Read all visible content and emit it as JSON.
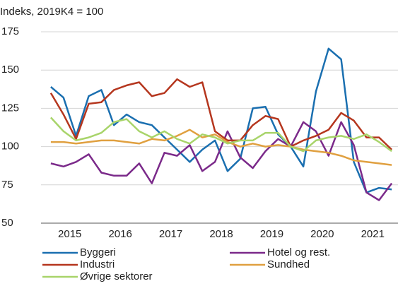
{
  "chart_data": {
    "type": "line",
    "y_label": "Indeks, 2019K4 = 100",
    "x": [
      2015.125,
      2015.375,
      2015.625,
      2015.875,
      2016.125,
      2016.375,
      2016.625,
      2016.875,
      2017.125,
      2017.375,
      2017.625,
      2017.875,
      2018.125,
      2018.375,
      2018.625,
      2018.875,
      2019.125,
      2019.375,
      2019.625,
      2019.875,
      2020.125,
      2020.375,
      2020.625,
      2020.875,
      2021.125,
      2021.375,
      2021.625,
      2021.875
    ],
    "xlim": [
      2015,
      2022
    ],
    "xticks": [
      {
        "value": 2015.5,
        "label": "2015"
      },
      {
        "value": 2016.5,
        "label": "2016"
      },
      {
        "value": 2017.5,
        "label": "2017"
      },
      {
        "value": 2018.5,
        "label": "2018"
      },
      {
        "value": 2019.5,
        "label": "2019"
      },
      {
        "value": 2020.5,
        "label": "2020"
      },
      {
        "value": 2021.5,
        "label": "2021"
      }
    ],
    "ylim": [
      50,
      175
    ],
    "yticks": [
      50,
      75,
      100,
      125,
      150,
      175
    ],
    "grid": true,
    "series": [
      {
        "name": "Byggeri",
        "color": "#1a6fb0",
        "values": [
          139,
          132,
          107,
          133,
          137,
          114,
          121,
          116,
          114,
          106,
          98,
          90,
          98,
          104,
          84,
          92,
          125,
          126,
          108,
          100,
          87,
          136,
          164,
          157,
          90,
          70,
          73,
          72
        ]
      },
      {
        "name": "Hotel og rest.",
        "color": "#7b2a8a",
        "values": [
          89,
          87,
          90,
          95,
          83,
          81,
          81,
          89,
          76,
          96,
          94,
          101,
          84,
          90,
          110,
          93,
          86,
          97,
          105,
          100,
          116,
          110,
          94,
          116,
          101,
          70,
          65,
          76
        ]
      },
      {
        "name": "Industri",
        "color": "#b5361e",
        "values": [
          135,
          121,
          105,
          128,
          129,
          137,
          140,
          142,
          133,
          135,
          144,
          139,
          142,
          110,
          104,
          104,
          114,
          120,
          118,
          100,
          104,
          107,
          111,
          122,
          117,
          106,
          106,
          98
        ]
      },
      {
        "name": "Sundhed",
        "color": "#e0a040",
        "values": [
          103,
          103,
          102,
          103,
          104,
          104,
          103,
          102,
          105,
          104,
          107,
          111,
          106,
          108,
          103,
          100,
          102,
          100,
          101,
          100,
          98,
          97,
          96,
          94,
          91,
          90,
          89,
          88
        ]
      },
      {
        "name": "Øvrige sektorer",
        "color": "#a8d46a",
        "values": [
          119,
          110,
          104,
          106,
          109,
          116,
          118,
          110,
          106,
          110,
          105,
          102,
          108,
          106,
          102,
          104,
          104,
          109,
          109,
          100,
          97,
          104,
          106,
          107,
          105,
          108,
          103,
          97
        ]
      }
    ]
  }
}
